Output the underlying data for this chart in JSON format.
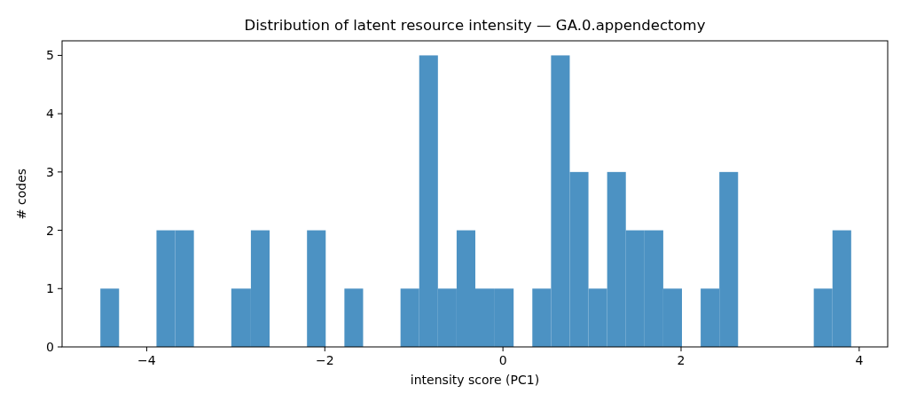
{
  "chart_data": {
    "type": "histogram",
    "title": "Distribution of latent resource intensity — GA.0.appendectomy",
    "xlabel": "intensity score (PC1)",
    "ylabel": "# codes",
    "color": "#4c92c3",
    "bins": [
      -4.52,
      -4.31,
      -3.89,
      -3.68,
      -3.47,
      -3.05,
      -2.83,
      -2.62,
      -2.2,
      -1.99,
      -1.78,
      -1.57,
      -1.15,
      -0.94,
      -0.73,
      -0.52,
      -0.31,
      -0.1,
      0.12,
      0.33,
      0.54,
      0.75,
      0.96,
      1.17,
      1.38,
      1.59,
      1.8,
      2.01,
      2.22,
      2.43,
      2.64,
      3.49,
      3.7,
      3.91
    ],
    "values": [
      1,
      0,
      2,
      2,
      0,
      1,
      2,
      0,
      2,
      0,
      1,
      0,
      1,
      5,
      1,
      2,
      1,
      1,
      0,
      1,
      5,
      3,
      1,
      3,
      2,
      2,
      1,
      0,
      1,
      3,
      0,
      1,
      2
    ],
    "xlim": [
      -4.95,
      4.32
    ],
    "ylim": [
      0,
      5.25
    ],
    "xticks": [
      {
        "value": -4,
        "label": "−4"
      },
      {
        "value": -2,
        "label": "−2"
      },
      0,
      2,
      4
    ],
    "yticks": [
      0,
      1,
      2,
      3,
      4,
      5
    ],
    "grid": false
  }
}
